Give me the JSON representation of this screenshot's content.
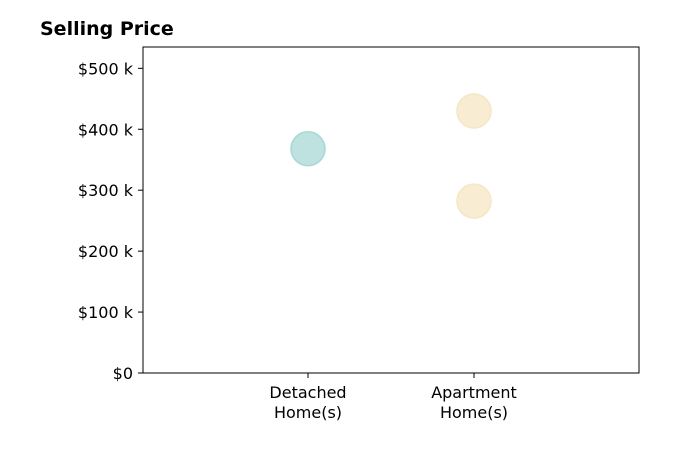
{
  "chart_data": {
    "type": "scatter",
    "title": "Selling Price",
    "xlabel": "",
    "ylabel": "",
    "categories": [
      "Detached\nHome(s)",
      "Apartment\nHome(s)"
    ],
    "ylim": [
      0,
      535000
    ],
    "yticks": [
      {
        "value": 0,
        "label": "$0"
      },
      {
        "value": 100000,
        "label": "$100 k"
      },
      {
        "value": 200000,
        "label": "$200 k"
      },
      {
        "value": 300000,
        "label": "$300 k"
      },
      {
        "value": 400000,
        "label": "$400 k"
      },
      {
        "value": 500000,
        "label": "$500 k"
      }
    ],
    "points": [
      {
        "category": "Detached\nHome(s)",
        "value": 368000,
        "color": "#a8d8d4"
      },
      {
        "category": "Apartment\nHome(s)",
        "value": 430000,
        "color": "#f5e6c4"
      },
      {
        "category": "Apartment\nHome(s)",
        "value": 282000,
        "color": "#f5e6c4"
      }
    ],
    "grid": false,
    "legend": "none"
  }
}
